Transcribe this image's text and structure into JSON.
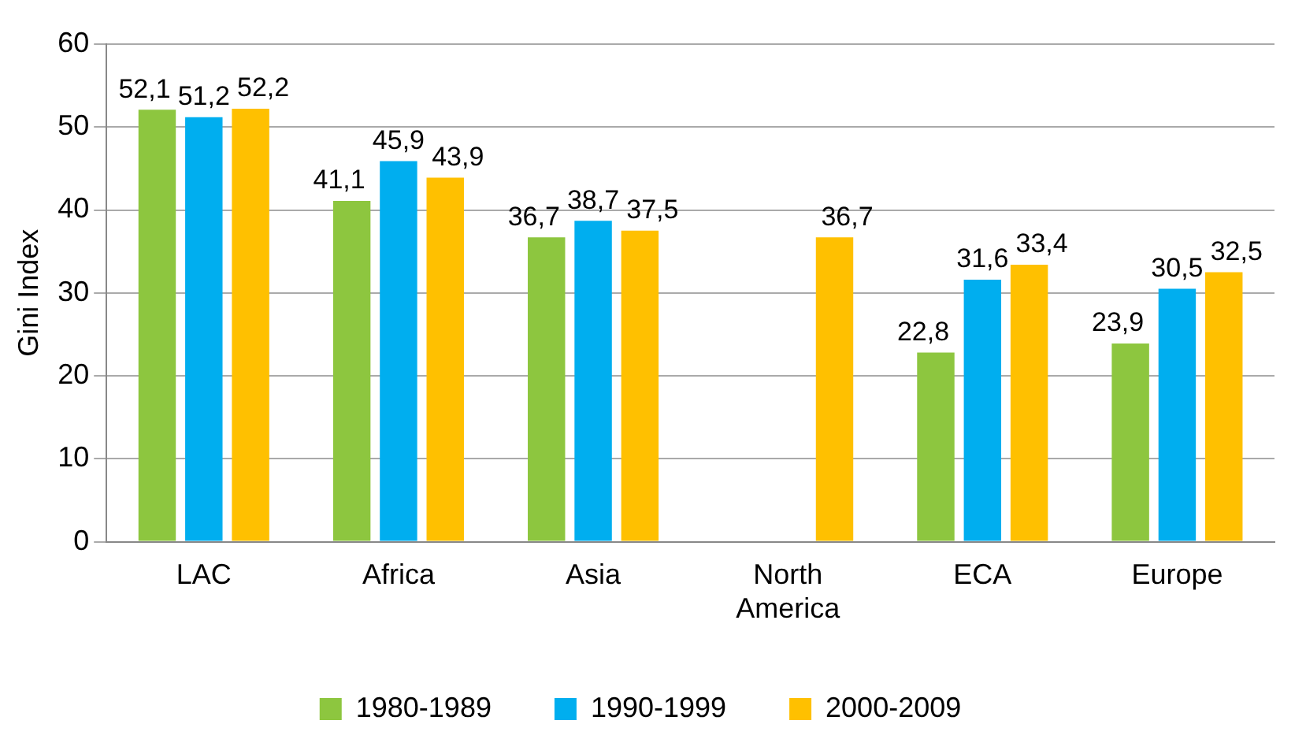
{
  "chart_data": {
    "type": "bar",
    "ylabel": "Gini Index",
    "categories": [
      "LAC",
      "Africa",
      "Asia",
      "North America",
      "ECA",
      "Europe"
    ],
    "series": [
      {
        "name": "1980-1989",
        "color": "#8dc63f",
        "values": [
          52.1,
          41.1,
          36.7,
          null,
          22.8,
          23.9
        ],
        "value_labels": [
          "52,1",
          "41,1",
          "36,7",
          null,
          "22,8",
          "23,9"
        ]
      },
      {
        "name": "1990-1999",
        "color": "#00aeef",
        "values": [
          51.2,
          45.9,
          38.7,
          null,
          31.6,
          30.5
        ],
        "value_labels": [
          "51,2",
          "45,9",
          "38,7",
          null,
          "31,6",
          "30,5"
        ]
      },
      {
        "name": "2000-2009",
        "color": "#ffc000",
        "values": [
          52.2,
          43.9,
          37.5,
          36.7,
          33.4,
          32.5
        ],
        "value_labels": [
          "52,2",
          "43,9",
          "37,5",
          "36,7",
          "33,4",
          "32,5"
        ]
      }
    ],
    "ylim": [
      0,
      60
    ],
    "yticks": [
      0,
      10,
      20,
      30,
      40,
      50,
      60
    ],
    "grid": "y",
    "legend": "bottom"
  }
}
